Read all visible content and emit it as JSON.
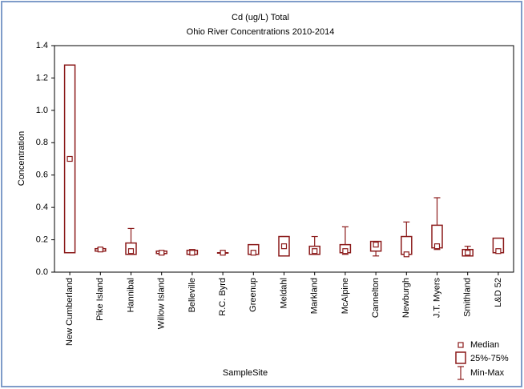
{
  "chart_data": {
    "type": "box",
    "title": "Cd (ug/L) Total",
    "subtitle": "Ohio River Concentrations 2010-2014",
    "x_label": "SampleSite",
    "y_label": "Concentration",
    "color": "#8b1a1a",
    "categories": [
      "New Cumberland",
      "Pike Island",
      "Hannibal",
      "Willow Island",
      "Belleville",
      "R.C. Byrd",
      "Greenup",
      "Meldahl",
      "Markland",
      "McAlpine",
      "Cannelton",
      "Newburgh",
      "J.T. Myers",
      "Smithland",
      "L&D 52"
    ],
    "medians": [
      0.7,
      0.14,
      0.13,
      0.12,
      0.12,
      0.12,
      0.12,
      0.16,
      0.13,
      0.13,
      0.17,
      0.11,
      0.16,
      0.12,
      0.13
    ],
    "q1": [
      0.12,
      0.13,
      0.11,
      0.115,
      0.11,
      0.12,
      0.11,
      0.1,
      0.11,
      0.12,
      0.13,
      0.11,
      0.15,
      0.1,
      0.12
    ],
    "q3": [
      1.28,
      0.145,
      0.18,
      0.13,
      0.135,
      0.12,
      0.17,
      0.22,
      0.16,
      0.17,
      0.19,
      0.22,
      0.29,
      0.14,
      0.21
    ],
    "min": [
      0.12,
      0.13,
      0.11,
      0.11,
      0.11,
      0.12,
      0.11,
      0.1,
      0.11,
      0.11,
      0.1,
      0.11,
      0.14,
      0.1,
      0.12
    ],
    "max": [
      1.28,
      0.15,
      0.27,
      0.13,
      0.14,
      0.12,
      0.17,
      0.22,
      0.22,
      0.28,
      0.19,
      0.31,
      0.46,
      0.16,
      0.21
    ],
    "legend": {
      "median": "Median",
      "box": "25%-75%",
      "whisker": "Min-Max"
    },
    "ylim": [
      0,
      1.4
    ],
    "yticks": [
      {
        "value": 0,
        "label": "0.0"
      },
      0.2,
      0.4,
      0.6,
      0.8,
      {
        "value": 1,
        "label": "1.0"
      },
      1.2,
      1.4
    ]
  }
}
